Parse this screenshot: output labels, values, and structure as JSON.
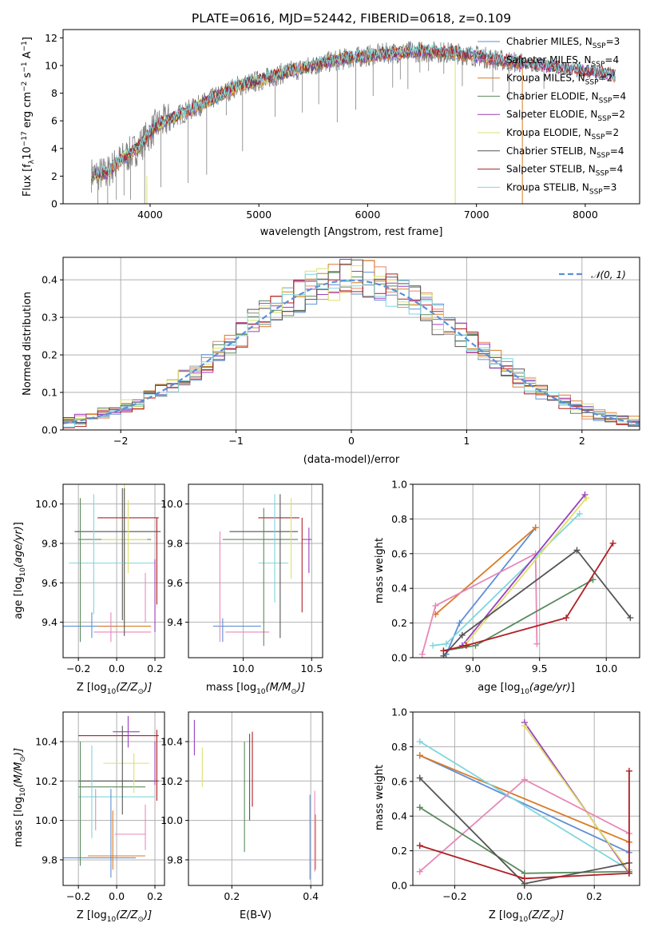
{
  "colors": {
    "miles_chabrier": "#5e8fd6",
    "miles_salpeter": "#e8836c",
    "miles_kroupa": "#d97b27",
    "elodie_chabrier": "#5a8a5e",
    "elodie_salpeter": "#9b3fbf",
    "elodie_kroupa": "#dde06a",
    "stelib_chabrier": "#555555",
    "stelib_salpeter": "#b01f24",
    "stelib_kroupa": "#7fd6dd",
    "pink": "#e888b8",
    "data": "#808080",
    "gaussian": "#5b8fd6"
  },
  "figure": {
    "title": "PLATE=0616, MJD=52442, FIBERID=0618, z=0.109"
  },
  "chart_data": [
    {
      "id": "spectrum",
      "type": "line",
      "xlabel": "wavelength [Angstrom, rest frame]",
      "ylabel_parts": [
        "Flux [f",
        "λ",
        "10",
        "−17",
        " erg cm",
        "−2",
        " s",
        "−1",
        " A",
        "−1",
        "]"
      ],
      "xlim": [
        3200,
        8500
      ],
      "ylim": [
        0,
        12.6
      ],
      "xticks": [
        4000,
        5000,
        6000,
        7000,
        8000
      ],
      "yticks": [
        0,
        2,
        4,
        6,
        8,
        10,
        12
      ],
      "grid": false,
      "legend_position": "top-right",
      "legend": [
        {
          "label": "Chabrier MILES",
          "nssp": "3",
          "color": "#5e8fd6"
        },
        {
          "label": "Salpeter MILES",
          "nssp": "4",
          "color": "#e8836c"
        },
        {
          "label": "Kroupa MILES",
          "nssp": "2",
          "color": "#d97b27"
        },
        {
          "label": "Chabrier ELODIE",
          "nssp": "4",
          "color": "#5a8a5e"
        },
        {
          "label": "Salpeter ELODIE",
          "nssp": "2",
          "color": "#9b3fbf"
        },
        {
          "label": "Kroupa ELODIE",
          "nssp": "2",
          "color": "#dde06a"
        },
        {
          "label": "Chabrier STELIB",
          "nssp": "4",
          "color": "#555555"
        },
        {
          "label": "Salpeter STELIB",
          "nssp": "4",
          "color": "#b01f24"
        },
        {
          "label": "Kroupa STELIB",
          "nssp": "3",
          "color": "#7fd6dd"
        }
      ],
      "nssp_label": "N",
      "nssp_sub": "SSP",
      "continuum": [
        [
          3450,
          2.1
        ],
        [
          3600,
          2.2
        ],
        [
          3700,
          3.0
        ],
        [
          3850,
          3.8
        ],
        [
          3950,
          4.6
        ],
        [
          4050,
          5.6
        ],
        [
          4200,
          6.2
        ],
        [
          4400,
          6.9
        ],
        [
          4600,
          7.7
        ],
        [
          4800,
          8.5
        ],
        [
          5000,
          8.9
        ],
        [
          5200,
          9.4
        ],
        [
          5400,
          9.8
        ],
        [
          5600,
          10.2
        ],
        [
          5800,
          10.5
        ],
        [
          6000,
          10.7
        ],
        [
          6200,
          10.9
        ],
        [
          6400,
          11.0
        ],
        [
          6600,
          11.0
        ],
        [
          6800,
          10.9
        ],
        [
          7000,
          10.7
        ],
        [
          7200,
          10.4
        ],
        [
          7400,
          10.2
        ],
        [
          7600,
          10.0
        ],
        [
          7800,
          9.8
        ],
        [
          8000,
          9.6
        ],
        [
          8300,
          9.3
        ]
      ],
      "spikes": [
        [
          3520,
          0
        ],
        [
          3610,
          0
        ],
        [
          3690,
          0.3
        ],
        [
          3760,
          0.6
        ],
        [
          3820,
          0.3
        ],
        [
          3950,
          0
        ],
        [
          4100,
          1.2
        ],
        [
          4350,
          1.5
        ],
        [
          4520,
          2.1
        ],
        [
          4700,
          6.4
        ],
        [
          4850,
          3.8
        ],
        [
          5150,
          6.3
        ],
        [
          5400,
          6.6
        ],
        [
          5550,
          7.2
        ],
        [
          5720,
          5.9
        ],
        [
          5890,
          6.8
        ],
        [
          6050,
          7.8
        ],
        [
          6230,
          8.4
        ],
        [
          6300,
          9.0
        ],
        [
          6370,
          8.3
        ],
        [
          6480,
          9.5
        ],
        [
          6560,
          9.6
        ],
        [
          6700,
          9.4
        ],
        [
          6870,
          8.5
        ],
        [
          7150,
          8.1
        ],
        [
          7300,
          7.4
        ],
        [
          7620,
          8.3
        ]
      ]
    },
    {
      "id": "residual_histogram",
      "type": "line",
      "xlabel": "(data-model)/error",
      "ylabel": "Normed distribution",
      "xlim": [
        -2.5,
        2.5
      ],
      "ylim": [
        0,
        0.46
      ],
      "xticks": [
        -2,
        -1,
        0,
        1,
        2
      ],
      "yticks": [
        0.0,
        0.1,
        0.2,
        0.3,
        0.4
      ],
      "grid": true,
      "legend_position": "top-right",
      "legend": [
        {
          "label": "𝒩(0, 1)",
          "color": "#5b8fd6"
        }
      ],
      "series_colors": [
        "#5e8fd6",
        "#e8836c",
        "#d97b27",
        "#5a8a5e",
        "#9b3fbf",
        "#dde06a",
        "#555555",
        "#b01f24",
        "#7fd6dd"
      ]
    },
    {
      "id": "age_vs_Z",
      "type": "scatter",
      "xlabel": "Z [log",
      "ylabel": "age  [log",
      "xlim": [
        -0.28,
        0.25
      ],
      "ylim": [
        9.22,
        10.1
      ],
      "xticks": [
        -0.2,
        0.0,
        0.2
      ],
      "yticks": [
        9.4,
        9.6,
        9.8,
        10.0
      ],
      "grid": true
    },
    {
      "id": "age_vs_mass",
      "type": "scatter",
      "xlabel": "mass [log",
      "xlim": [
        9.6,
        10.58
      ],
      "ylim": [
        9.22,
        10.1
      ],
      "xticks": [
        10.0,
        10.5
      ],
      "yticks": [
        9.4,
        9.6,
        9.8,
        10.0
      ],
      "grid": true
    },
    {
      "id": "weight_vs_age",
      "type": "line",
      "xlabel": "age  [log",
      "ylabel": "mass weight",
      "xlim": [
        8.55,
        10.25
      ],
      "ylim": [
        0,
        1.0
      ],
      "xticks": [
        9.0,
        9.5,
        10.0
      ],
      "yticks": [
        0.0,
        0.2,
        0.4,
        0.6,
        0.8,
        1.0
      ],
      "grid": true,
      "series": [
        {
          "color": "#5e8fd6",
          "points": [
            [
              8.8,
              0.02
            ],
            [
              8.9,
              0.2
            ],
            [
              9.47,
              0.75
            ]
          ]
        },
        {
          "color": "#d97b27",
          "points": [
            [
              8.72,
              0.25
            ],
            [
              9.47,
              0.75
            ]
          ]
        },
        {
          "color": "#e888b8",
          "points": [
            [
              8.62,
              0.02
            ],
            [
              8.72,
              0.3
            ],
            [
              9.47,
              0.6
            ],
            [
              9.48,
              0.08
            ]
          ]
        },
        {
          "color": "#7fd6dd",
          "points": [
            [
              8.7,
              0.07
            ],
            [
              8.8,
              0.08
            ],
            [
              9.8,
              0.83
            ]
          ]
        },
        {
          "color": "#9b3fbf",
          "points": [
            [
              8.92,
              0.07
            ],
            [
              9.84,
              0.94
            ]
          ]
        },
        {
          "color": "#dde06a",
          "points": [
            [
              8.95,
              0.08
            ],
            [
              9.85,
              0.92
            ]
          ]
        },
        {
          "color": "#5a8a5e",
          "points": [
            [
              8.78,
              0.04
            ],
            [
              9.02,
              0.07
            ],
            [
              9.9,
              0.45
            ]
          ]
        },
        {
          "color": "#555555",
          "points": [
            [
              8.78,
              0.01
            ],
            [
              8.92,
              0.13
            ],
            [
              9.78,
              0.62
            ],
            [
              10.18,
              0.23
            ]
          ]
        },
        {
          "color": "#b01f24",
          "points": [
            [
              8.78,
              0.04
            ],
            [
              8.95,
              0.07
            ],
            [
              9.7,
              0.23
            ],
            [
              10.05,
              0.66
            ]
          ]
        }
      ]
    },
    {
      "id": "mass_vs_Z",
      "type": "scatter",
      "xlabel": "Z [log",
      "ylabel": "mass [log",
      "xlim": [
        -0.28,
        0.25
      ],
      "ylim": [
        9.67,
        10.55
      ],
      "xticks": [
        -0.2,
        0.0,
        0.2
      ],
      "yticks": [
        9.8,
        10.0,
        10.2,
        10.4
      ],
      "grid": true
    },
    {
      "id": "mass_vs_ebv",
      "type": "scatter",
      "xlabel": "E(B-V)",
      "xlim": [
        0.09,
        0.43
      ],
      "ylim": [
        9.67,
        10.55
      ],
      "xticks": [
        0.2,
        0.4
      ],
      "yticks": [
        9.8,
        10.0,
        10.2,
        10.4
      ],
      "grid": true
    },
    {
      "id": "weight_vs_Z",
      "type": "line",
      "xlabel": "Z [log",
      "ylabel": "mass weight",
      "xlim": [
        -0.32,
        0.33
      ],
      "ylim": [
        0,
        1.0
      ],
      "xticks": [
        -0.2,
        0.0,
        0.2
      ],
      "yticks": [
        0.0,
        0.2,
        0.4,
        0.6,
        0.8,
        1.0
      ],
      "grid": true,
      "series": [
        {
          "color": "#5e8fd6",
          "points": [
            [
              -0.3,
              0.75
            ],
            [
              0.3,
              0.19
            ]
          ]
        },
        {
          "color": "#d97b27",
          "points": [
            [
              -0.3,
              0.75
            ],
            [
              0.3,
              0.25
            ]
          ]
        },
        {
          "color": "#7fd6dd",
          "points": [
            [
              -0.3,
              0.83
            ],
            [
              0.3,
              0.09
            ]
          ]
        },
        {
          "color": "#9b3fbf",
          "points": [
            [
              0.0,
              0.94
            ],
            [
              0.3,
              0.07
            ]
          ]
        },
        {
          "color": "#dde06a",
          "points": [
            [
              0.0,
              0.92
            ],
            [
              0.3,
              0.08
            ]
          ]
        },
        {
          "color": "#e888b8",
          "points": [
            [
              -0.3,
              0.08
            ],
            [
              0.0,
              0.61
            ],
            [
              0.3,
              0.3
            ]
          ]
        },
        {
          "color": "#5a8a5e",
          "points": [
            [
              -0.3,
              0.45
            ],
            [
              0.0,
              0.07
            ],
            [
              0.3,
              0.08
            ]
          ]
        },
        {
          "color": "#555555",
          "points": [
            [
              -0.3,
              0.62
            ],
            [
              0.0,
              0.01
            ],
            [
              0.3,
              0.13
            ]
          ]
        },
        {
          "color": "#b01f24",
          "points": [
            [
              -0.3,
              0.23
            ],
            [
              0.0,
              0.04
            ],
            [
              0.3,
              0.07
            ],
            [
              0.3,
              0.66
            ]
          ]
        }
      ]
    }
  ],
  "units": {
    "Z_sub": "10",
    "Z_paren": "(Z/Z",
    "sun_sub": "⊙",
    "age_paren": "(age/yr)",
    "mass_paren": "(M/M"
  }
}
